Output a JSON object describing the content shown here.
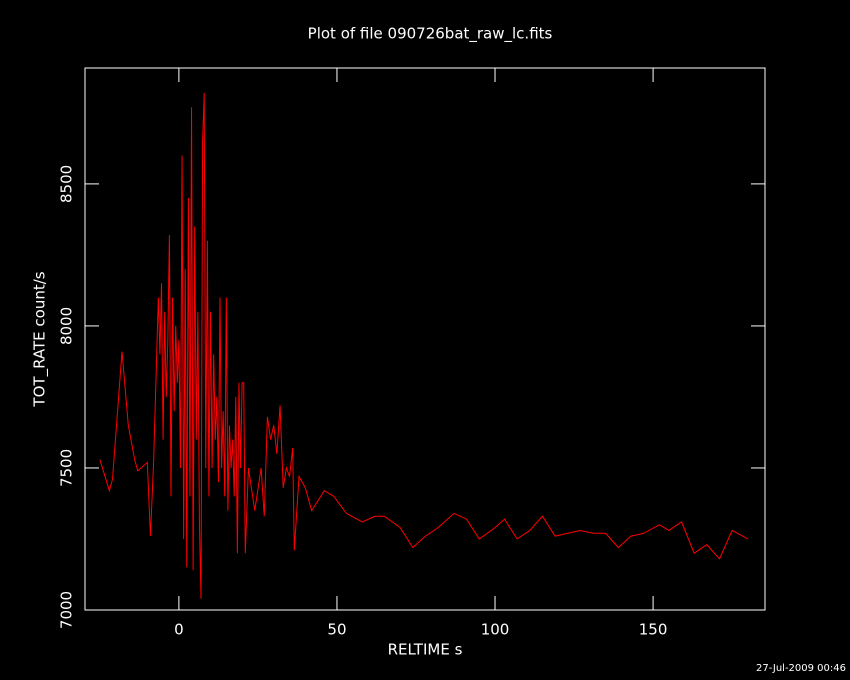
{
  "chart_data": {
    "type": "line",
    "title": "Plot of file 090726bat_raw_lc.fits",
    "xlabel": "RELTIME  s",
    "ylabel": "TOT_RATE  count/s",
    "footer": "27-Jul-2009 00:46",
    "xlim": [
      -29.7,
      185.4
    ],
    "ylim": [
      7000,
      8908
    ],
    "xticks": [
      0,
      50,
      100,
      150
    ],
    "yticks": [
      7000,
      7500,
      8000,
      8500
    ],
    "grid": false,
    "series": [
      {
        "name": "TOT_RATE",
        "color": "#ff0000",
        "x": [
          -25,
          -22,
          -21,
          -18,
          -16,
          -14,
          -13,
          -10,
          -9,
          -8,
          -6.5,
          -6,
          -5.5,
          -5,
          -4.5,
          -4,
          -3.5,
          -3,
          -2.5,
          -2,
          -1.5,
          -1,
          -0.5,
          0,
          0.5,
          1,
          1.5,
          2,
          2.5,
          3,
          3.5,
          4,
          4.5,
          5,
          5.5,
          6,
          6.5,
          7,
          7.5,
          8,
          8.5,
          9,
          9.5,
          10,
          10.5,
          11,
          11.5,
          12,
          12.5,
          13,
          13.5,
          14,
          14.5,
          15,
          15.5,
          16,
          16.5,
          17,
          17.5,
          18,
          18.5,
          19,
          19.5,
          20,
          20.5,
          21,
          22,
          24,
          26,
          27,
          28,
          29,
          30,
          31,
          32,
          33,
          34,
          35,
          36,
          36.5,
          38,
          40,
          42,
          46,
          49,
          53,
          58,
          62,
          65,
          70,
          74,
          78,
          82,
          87,
          91,
          95,
          100,
          103,
          107,
          111,
          115,
          119,
          123,
          127,
          131,
          135,
          139,
          143,
          147,
          152,
          155,
          159,
          163,
          167,
          171,
          175,
          180
        ],
        "values": [
          7530,
          7420,
          7460,
          7910,
          7650,
          7530,
          7490,
          7520,
          7260,
          7520,
          8100,
          7900,
          8150,
          7600,
          8050,
          7750,
          7950,
          8320,
          7400,
          8100,
          7700,
          8000,
          7800,
          7950,
          7500,
          8600,
          7250,
          8200,
          7150,
          8450,
          7400,
          8770,
          7140,
          8350,
          7600,
          8050,
          7300,
          7040,
          8650,
          8820,
          7500,
          8300,
          7400,
          8050,
          7500,
          7900,
          7600,
          7750,
          7450,
          8100,
          7500,
          7700,
          7400,
          8100,
          7350,
          7650,
          7500,
          7600,
          7400,
          7750,
          7200,
          7800,
          7500,
          7800,
          7800,
          7200,
          7500,
          7350,
          7500,
          7330,
          7680,
          7600,
          7650,
          7550,
          7720,
          7430,
          7500,
          7470,
          7570,
          7210,
          7470,
          7430,
          7350,
          7420,
          7400,
          7340,
          7310,
          7330,
          7330,
          7290,
          7220,
          7260,
          7290,
          7340,
          7320,
          7250,
          7290,
          7320,
          7250,
          7280,
          7330,
          7260,
          7270,
          7280,
          7270,
          7270,
          7220,
          7260,
          7270,
          7300,
          7280,
          7310,
          7200,
          7230,
          7180,
          7280,
          7250
        ]
      }
    ]
  }
}
